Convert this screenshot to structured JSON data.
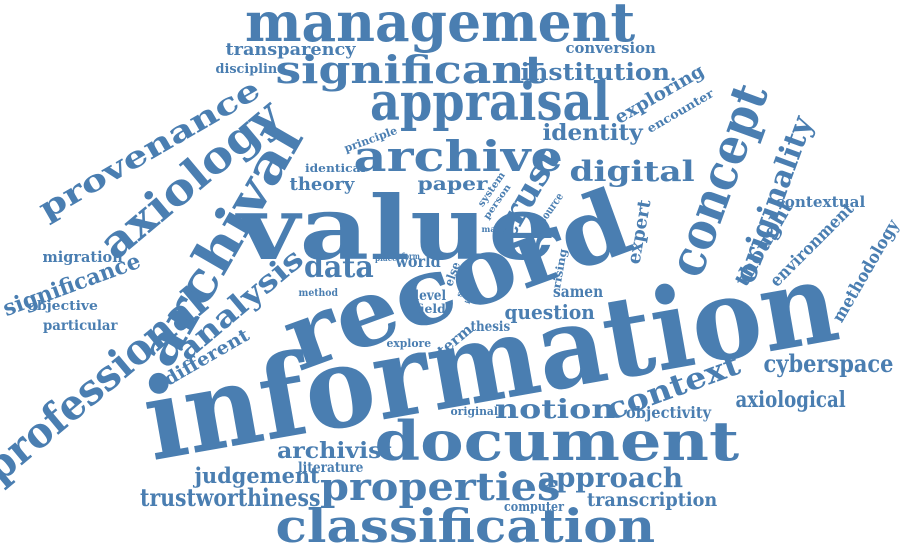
{
  "word_cloud": {
    "color": "#4a7eb1",
    "words": [
      {
        "text": "management"
      },
      {
        "text": "transparency"
      },
      {
        "text": "conversion"
      },
      {
        "text": "discipline"
      },
      {
        "text": "significant"
      },
      {
        "text": "institution"
      },
      {
        "text": "appraisal"
      },
      {
        "text": "provenance"
      },
      {
        "text": "exploring"
      },
      {
        "text": "encounter"
      },
      {
        "text": "archive"
      },
      {
        "text": "identity"
      },
      {
        "text": "principle"
      },
      {
        "text": "axiology"
      },
      {
        "text": "archival"
      },
      {
        "text": "identical"
      },
      {
        "text": "paper"
      },
      {
        "text": "digital"
      },
      {
        "text": "theory"
      },
      {
        "text": "trust"
      },
      {
        "text": "system"
      },
      {
        "text": "person"
      },
      {
        "text": "resource"
      },
      {
        "text": "concept"
      },
      {
        "text": "originality"
      },
      {
        "text": "value"
      },
      {
        "text": "expert"
      },
      {
        "text": "contextual"
      },
      {
        "text": "thought"
      },
      {
        "text": "environment"
      },
      {
        "text": "methodology"
      },
      {
        "text": "migration"
      },
      {
        "text": "many"
      },
      {
        "text": "significance"
      },
      {
        "text": "place"
      },
      {
        "text": "form"
      },
      {
        "text": "world"
      },
      {
        "text": "data"
      },
      {
        "text": "else"
      },
      {
        "text": "seek"
      },
      {
        "text": "idea"
      },
      {
        "text": "rising"
      },
      {
        "text": "record"
      },
      {
        "text": "professional"
      },
      {
        "text": "analysis"
      },
      {
        "text": "objective"
      },
      {
        "text": "method"
      },
      {
        "text": "level"
      },
      {
        "text": "field"
      },
      {
        "text": "samen"
      },
      {
        "text": "particular"
      },
      {
        "text": "question"
      },
      {
        "text": "thesis"
      },
      {
        "text": "explore"
      },
      {
        "text": "term"
      },
      {
        "text": "different"
      },
      {
        "text": "information"
      },
      {
        "text": "cyberspace"
      },
      {
        "text": "context"
      },
      {
        "text": "axiological"
      },
      {
        "text": "notion"
      },
      {
        "text": "original"
      },
      {
        "text": "objectivity"
      },
      {
        "text": "document"
      },
      {
        "text": "archivist"
      },
      {
        "text": "literature"
      },
      {
        "text": "judgement"
      },
      {
        "text": "approach"
      },
      {
        "text": "properties"
      },
      {
        "text": "trustworthiness"
      },
      {
        "text": "transcription"
      },
      {
        "text": "computer"
      },
      {
        "text": "classification"
      }
    ]
  }
}
